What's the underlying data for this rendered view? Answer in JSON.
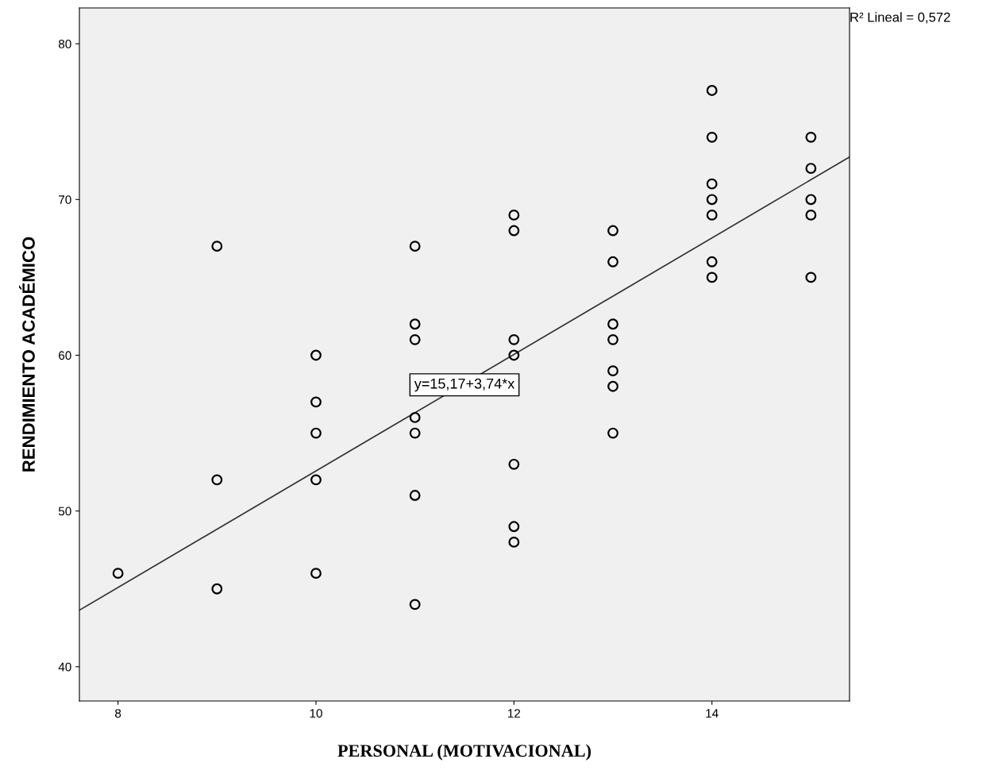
{
  "chart_data": {
    "type": "scatter",
    "xlabel": "PERSONAL (MOTIVACIONAL)",
    "ylabel": "RENDIMIENTO ACADÉMICO",
    "series": [
      {
        "color": "#000000",
        "marker": "circle",
        "x": [
          8,
          9,
          9,
          9,
          10,
          10,
          10,
          10,
          10,
          11,
          11,
          11,
          11,
          11,
          11,
          11,
          12,
          12,
          12,
          12,
          12,
          12,
          12,
          13,
          13,
          13,
          13,
          13,
          13,
          13,
          14,
          14,
          14,
          14,
          14,
          14,
          14,
          15,
          15,
          15,
          15,
          15
        ],
        "values": [
          46,
          67,
          52,
          45,
          60,
          57,
          55,
          52,
          46,
          67,
          62,
          61,
          56,
          55,
          51,
          44,
          69,
          68,
          61,
          60,
          53,
          49,
          48,
          68,
          66,
          62,
          61,
          59,
          58,
          55,
          77,
          74,
          71,
          70,
          69,
          66,
          65,
          74,
          72,
          70,
          69,
          65
        ]
      },
      {
        "type": "line",
        "color": "#333333",
        "x": [
          7.61,
          15.39
        ],
        "values": [
          43.63,
          72.73
        ]
      }
    ],
    "annotations": [
      {
        "text": "y=15,17+3,74*x",
        "x": 11.5,
        "y": 58.1
      },
      "R² Lineal = 0,572"
    ],
    "xlim": [
      7.61,
      15.39
    ],
    "ylim": [
      37.8,
      82.3
    ],
    "xticks": [
      8,
      10,
      12,
      14
    ],
    "yticks": [
      40,
      50,
      60,
      70,
      80
    ],
    "grid": false,
    "legend": false
  }
}
